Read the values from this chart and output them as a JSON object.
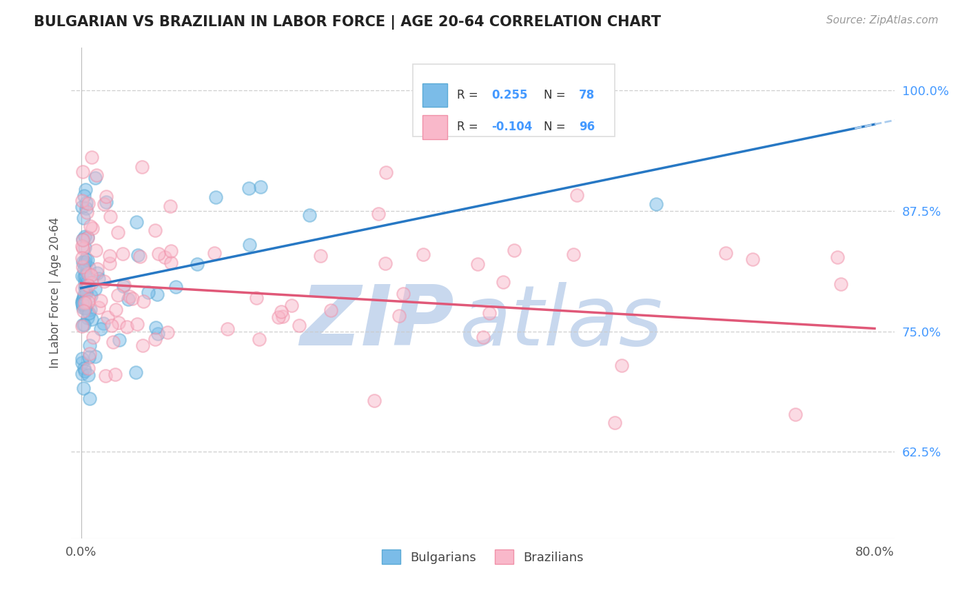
{
  "title": "BULGARIAN VS BRAZILIAN IN LABOR FORCE | AGE 20-64 CORRELATION CHART",
  "source": "Source: ZipAtlas.com",
  "ylabel": "In Labor Force | Age 20-64",
  "xlim": [
    -0.01,
    0.82
  ],
  "ylim": [
    0.535,
    1.045
  ],
  "xtick_positions": [
    0.0,
    0.8
  ],
  "xticklabels": [
    "0.0%",
    "80.0%"
  ],
  "ytick_positions": [
    0.625,
    0.75,
    0.875,
    1.0
  ],
  "yticklabels": [
    "62.5%",
    "75.0%",
    "87.5%",
    "100.0%"
  ],
  "bulgarian_R": 0.255,
  "bulgarian_N": 78,
  "brazilian_R": -0.104,
  "brazilian_N": 96,
  "bulgarian_color": "#7bbce8",
  "bulgarian_edge_color": "#5aaad6",
  "brazilian_color": "#f9b8ca",
  "brazilian_edge_color": "#f090a8",
  "bulgarian_line_color": "#2778c4",
  "brazilian_line_color": "#e05878",
  "bulgarian_line_dashed_color": "#aaccee",
  "watermark_zip_color": "#c8d8ee",
  "watermark_atlas_color": "#c8d8ee",
  "bg_color": "#ffffff",
  "grid_color": "#cccccc",
  "title_color": "#222222",
  "source_color": "#999999",
  "tick_color_y": "#4499ff",
  "tick_color_x": "#555555",
  "legend_border_color": "#dddddd",
  "legend_R_label_color": "#333333",
  "legend_val_color": "#4499ff",
  "bul_line_intercept": 0.795,
  "bul_line_slope": 0.255,
  "bra_line_intercept": 0.8,
  "bra_line_slope": -0.068
}
